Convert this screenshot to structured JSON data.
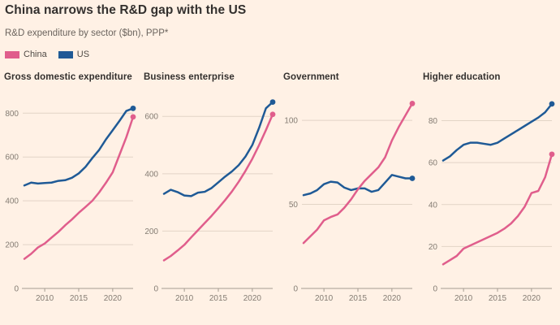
{
  "page": {
    "title": "China narrows the R&D gap with the US",
    "subtitle": "R&D expenditure by sector ($bn), PPP*",
    "background": "#fff1e5"
  },
  "colors": {
    "china": "#e05e8c",
    "us": "#1f5a96",
    "gridline": "#e2d4c6",
    "axis": "#a59c91",
    "tick_text": "#847c73",
    "title_text": "#33302e"
  },
  "legend": [
    {
      "label": "China",
      "color": "#e05e8c"
    },
    {
      "label": "US",
      "color": "#1f5a96"
    }
  ],
  "chart_data": [
    {
      "type": "line",
      "title": "Gross domestic expenditure",
      "x": [
        2007,
        2008,
        2009,
        2010,
        2011,
        2012,
        2013,
        2014,
        2015,
        2016,
        2017,
        2018,
        2019,
        2020,
        2021,
        2022,
        2023
      ],
      "series": [
        {
          "name": "China",
          "color": "#e05e8c",
          "values": [
            135,
            158,
            187,
            205,
            232,
            258,
            288,
            315,
            345,
            372,
            400,
            438,
            482,
            530,
            610,
            690,
            783
          ]
        },
        {
          "name": "US",
          "color": "#1f5a96",
          "values": [
            470,
            483,
            479,
            481,
            483,
            491,
            494,
            505,
            525,
            555,
            595,
            632,
            680,
            722,
            765,
            810,
            822
          ]
        }
      ],
      "yticks": [
        0,
        200,
        400,
        600,
        800
      ],
      "ylim": [
        0,
        890
      ],
      "xticks": [
        2010,
        2015,
        2020
      ],
      "xlim": [
        2007,
        2023
      ],
      "grid": true,
      "legend_position": "top"
    },
    {
      "type": "line",
      "title": "Business enterprise",
      "x": [
        2007,
        2008,
        2009,
        2010,
        2011,
        2012,
        2013,
        2014,
        2015,
        2016,
        2017,
        2018,
        2019,
        2020,
        2021,
        2022,
        2023
      ],
      "series": [
        {
          "name": "China",
          "color": "#e05e8c",
          "values": [
            98,
            113,
            132,
            152,
            178,
            203,
            228,
            253,
            280,
            308,
            338,
            372,
            410,
            452,
            500,
            552,
            607
          ]
        },
        {
          "name": "US",
          "color": "#1f5a96",
          "values": [
            330,
            344,
            336,
            324,
            322,
            334,
            337,
            350,
            370,
            390,
            408,
            430,
            460,
            500,
            560,
            628,
            650
          ]
        }
      ],
      "yticks": [
        0,
        200,
        400,
        600
      ],
      "ylim": [
        0,
        680
      ],
      "xticks": [
        2010,
        2015,
        2020
      ],
      "xlim": [
        2007,
        2023
      ],
      "grid": true,
      "legend_position": "top"
    },
    {
      "type": "line",
      "title": "Government",
      "x": [
        2007,
        2008,
        2009,
        2010,
        2011,
        2012,
        2013,
        2014,
        2015,
        2016,
        2017,
        2018,
        2019,
        2020,
        2021,
        2022,
        2023
      ],
      "series": [
        {
          "name": "China",
          "color": "#e05e8c",
          "values": [
            27,
            31,
            35,
            40.5,
            42.5,
            44,
            48,
            53,
            59,
            64,
            68,
            72,
            78,
            88,
            96,
            103,
            110
          ]
        },
        {
          "name": "US",
          "color": "#1f5a96",
          "values": [
            55.5,
            56.5,
            58.5,
            62,
            63.5,
            63,
            60,
            58.5,
            59.5,
            59.5,
            57.5,
            58.5,
            63,
            67.5,
            66.5,
            65.5,
            65.5
          ]
        }
      ],
      "yticks": [
        0,
        50,
        100
      ],
      "ylim": [
        0,
        116
      ],
      "xticks": [
        2010,
        2015,
        2020
      ],
      "xlim": [
        2007,
        2023
      ],
      "grid": true,
      "legend_position": "top"
    },
    {
      "type": "line",
      "title": "Higher education",
      "x": [
        2007,
        2008,
        2009,
        2010,
        2011,
        2012,
        2013,
        2014,
        2015,
        2016,
        2017,
        2018,
        2019,
        2020,
        2021,
        2022,
        2023
      ],
      "series": [
        {
          "name": "China",
          "color": "#e05e8c",
          "values": [
            11.5,
            13.5,
            15.5,
            19,
            20.5,
            22,
            23.5,
            25,
            26.5,
            28.5,
            31,
            34.5,
            39,
            45.5,
            46.5,
            53,
            64
          ]
        },
        {
          "name": "US",
          "color": "#1f5a96",
          "values": [
            61,
            63,
            66,
            68.5,
            69.5,
            69.5,
            69,
            68.5,
            69.5,
            71.5,
            73.5,
            75.5,
            77.5,
            79.5,
            81.5,
            84,
            88
          ]
        }
      ],
      "yticks": [
        0,
        20,
        40,
        60,
        80
      ],
      "ylim": [
        0,
        93
      ],
      "xticks": [
        2010,
        2015,
        2020
      ],
      "xlim": [
        2007,
        2023
      ],
      "grid": true,
      "legend_position": "top"
    }
  ]
}
